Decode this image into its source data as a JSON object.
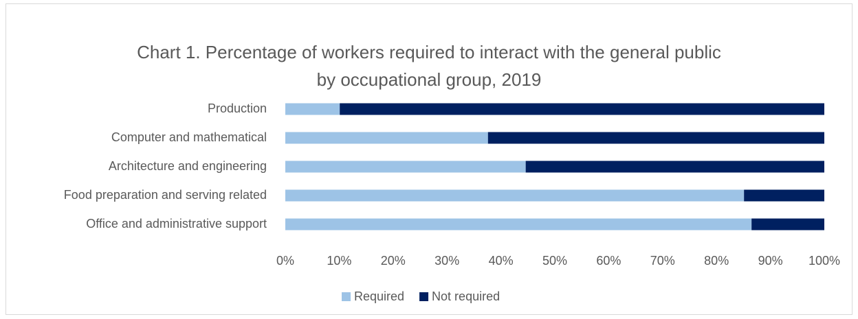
{
  "chart_data": {
    "type": "stacked_barh",
    "title": [
      "Chart 1. Percentage of workers required to interact with the general public",
      "by occupational group, 2019"
    ],
    "categories": [
      "Production",
      "Computer and mathematical",
      "Architecture and engineering",
      "Food preparation and serving related",
      "Office and administrative support"
    ],
    "series": [
      {
        "name": "Required",
        "color": "#9dc3e6",
        "values": [
          10.1,
          37.6,
          44.6,
          85.1,
          86.5
        ]
      },
      {
        "name": "Not required",
        "color": "#002060",
        "values": [
          89.9,
          62.4,
          55.4,
          14.9,
          13.5
        ]
      }
    ],
    "xlim": [
      0,
      100
    ],
    "xticks": [
      {
        "value": 0,
        "label": "0%"
      },
      {
        "value": 10,
        "label": "10%"
      },
      {
        "value": 20,
        "label": "20%"
      },
      {
        "value": 30,
        "label": "30%"
      },
      {
        "value": 40,
        "label": "40%"
      },
      {
        "value": 50,
        "label": "50%"
      },
      {
        "value": 60,
        "label": "60%"
      },
      {
        "value": 70,
        "label": "70%"
      },
      {
        "value": 80,
        "label": "80%"
      },
      {
        "value": 90,
        "label": "90%"
      },
      {
        "value": 100,
        "label": "100%"
      }
    ],
    "grid": false,
    "legend": "bottom"
  }
}
